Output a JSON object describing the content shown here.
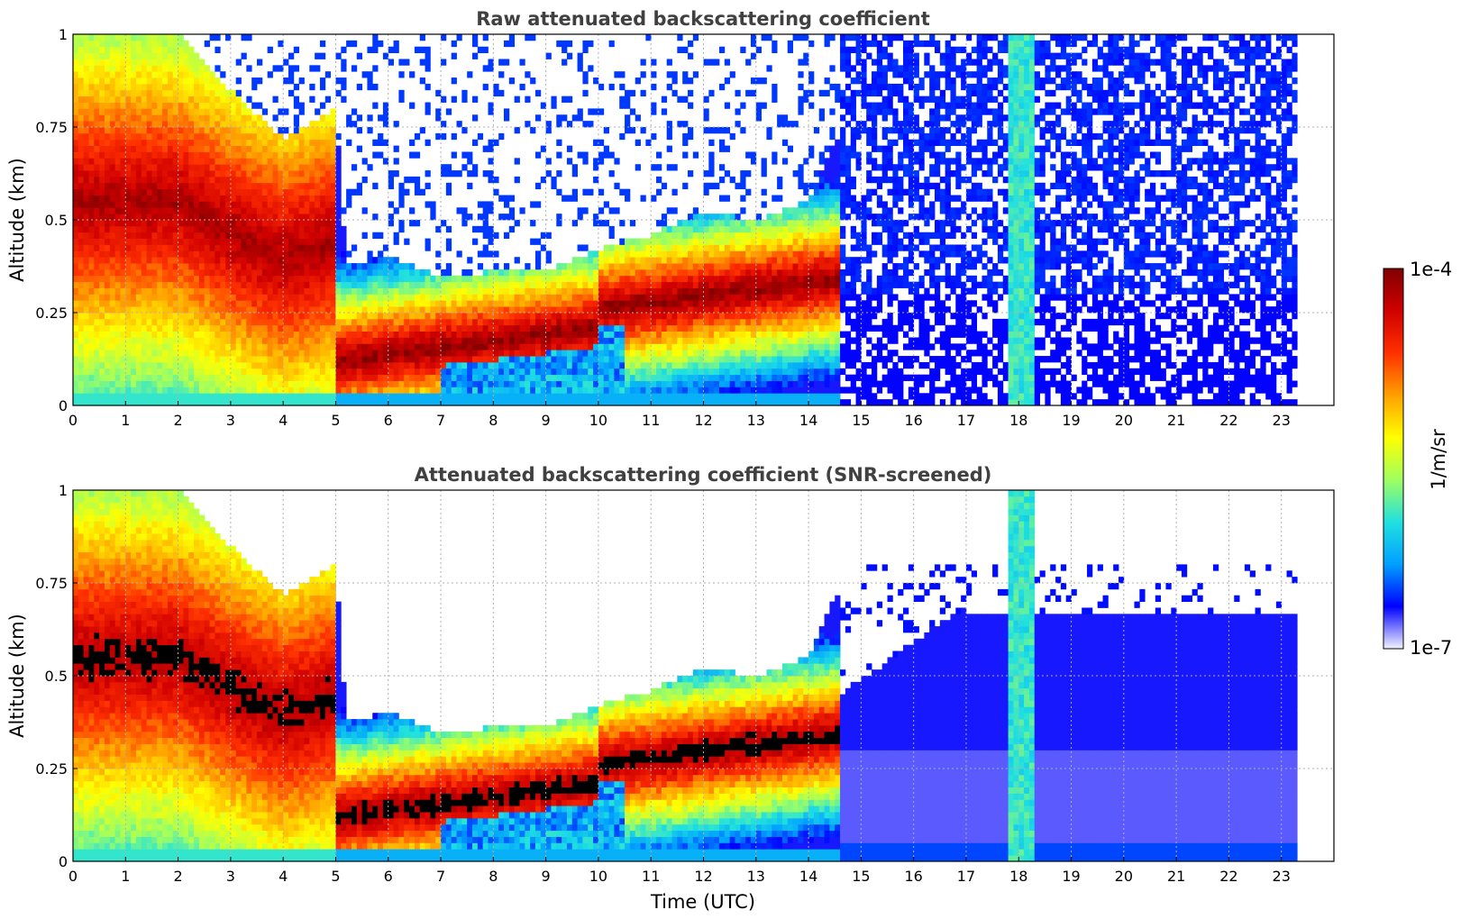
{
  "chart_data": [
    {
      "type": "heatmap",
      "title": "Raw attenuated backscattering coefficient",
      "xlabel": "",
      "ylabel": "Altitude (km)",
      "xlim": [
        0,
        24
      ],
      "ylim": [
        0,
        1
      ],
      "x_ticks": [
        "0",
        "1",
        "2",
        "3",
        "4",
        "5",
        "6",
        "7",
        "8",
        "9",
        "10",
        "11",
        "12",
        "13",
        "14",
        "15",
        "16",
        "17",
        "18",
        "19",
        "20",
        "21",
        "22",
        "23"
      ],
      "y_ticks": [
        "0",
        "0.25",
        "0.5",
        "0.75",
        "1"
      ],
      "grid": true,
      "data_end_hour": 23.3,
      "layer_top_km": [
        {
          "hour": 0,
          "value": 1.0
        },
        {
          "hour": 1,
          "value": 1.0
        },
        {
          "hour": 2,
          "value": 1.0
        },
        {
          "hour": 3,
          "value": 0.85
        },
        {
          "hour": 4,
          "value": 0.72
        },
        {
          "hour": 5,
          "value": 0.8
        },
        {
          "hour": 5.2,
          "value": 0.38
        },
        {
          "hour": 6,
          "value": 0.4
        },
        {
          "hour": 7,
          "value": 0.35
        },
        {
          "hour": 8,
          "value": 0.36
        },
        {
          "hour": 9,
          "value": 0.36
        },
        {
          "hour": 10,
          "value": 0.42
        },
        {
          "hour": 11,
          "value": 0.46
        },
        {
          "hour": 12,
          "value": 0.52
        },
        {
          "hour": 13,
          "value": 0.5
        },
        {
          "hour": 14,
          "value": 0.55
        },
        {
          "hour": 14.5,
          "value": 0.72
        }
      ]
    },
    {
      "type": "heatmap",
      "title": "Attenuated backscattering coefficient (SNR-screened)",
      "xlabel": "Time (UTC)",
      "ylabel": "Altitude (km)",
      "xlim": [
        0,
        24
      ],
      "ylim": [
        0,
        1
      ],
      "x_ticks": [
        "0",
        "1",
        "2",
        "3",
        "4",
        "5",
        "6",
        "7",
        "8",
        "9",
        "10",
        "11",
        "12",
        "13",
        "14",
        "15",
        "16",
        "17",
        "18",
        "19",
        "20",
        "21",
        "22",
        "23"
      ],
      "y_ticks": [
        "0",
        "0.25",
        "0.5",
        "0.75",
        "1"
      ],
      "grid": true,
      "data_end_hour": 23.3
    }
  ],
  "colorbar": {
    "label": "1/m/sr",
    "max_label": "1e-4",
    "min_label": "1e-7",
    "colormap": [
      "#f2f2ff",
      "#0000ff",
      "#00a0ff",
      "#20e0e0",
      "#a0ff60",
      "#ffff00",
      "#ffa000",
      "#ff3000",
      "#d00000",
      "#800000"
    ],
    "saturated_color": "#000000",
    "scale": "log"
  }
}
